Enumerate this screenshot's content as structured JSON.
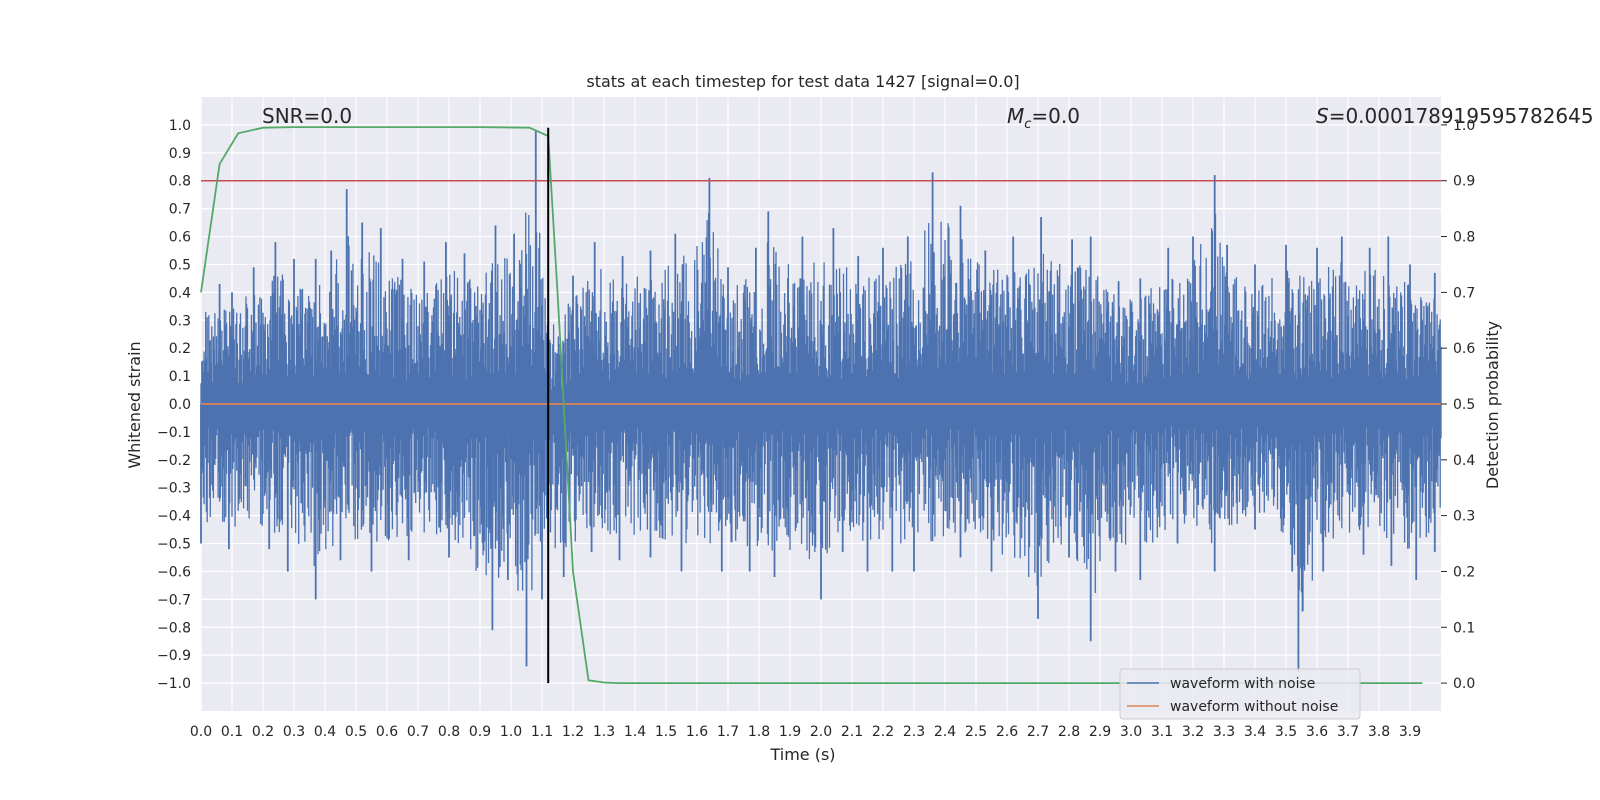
{
  "chart_data": {
    "type": "line",
    "title": "stats at each timestep for test data 1427 [signal=0.0]",
    "xlabel": "Time (s)",
    "ylabel": "Whitened strain",
    "y2label": "Detection probability",
    "xlim": [
      0.0,
      4.0
    ],
    "ylim": [
      -1.1,
      1.1
    ],
    "y2lim": [
      -0.05,
      1.05
    ],
    "x_ticks": [
      "0.0",
      "0.1",
      "0.2",
      "0.3",
      "0.4",
      "0.5",
      "0.6",
      "0.7",
      "0.8",
      "0.9",
      "1.0",
      "1.1",
      "1.2",
      "1.3",
      "1.4",
      "1.5",
      "1.6",
      "1.7",
      "1.8",
      "1.9",
      "2.0",
      "2.1",
      "2.2",
      "2.3",
      "2.4",
      "2.5",
      "2.6",
      "2.7",
      "2.8",
      "2.9",
      "3.0",
      "3.1",
      "3.2",
      "3.3",
      "3.4",
      "3.5",
      "3.6",
      "3.7",
      "3.8",
      "3.9"
    ],
    "y_ticks": [
      "1.0",
      "0.9",
      "0.8",
      "0.7",
      "0.6",
      "0.5",
      "0.4",
      "0.3",
      "0.2",
      "0.1",
      "0.0",
      "−0.1",
      "−0.2",
      "−0.3",
      "−0.4",
      "−0.5",
      "−0.6",
      "−0.7",
      "−0.8",
      "−0.9",
      "−1.0"
    ],
    "y2_ticks": [
      "1.0",
      "0.9",
      "0.8",
      "0.7",
      "0.6",
      "0.5",
      "0.4",
      "0.3",
      "0.2",
      "0.1",
      "0.0"
    ],
    "annotations": {
      "snr": "SNR=0.0",
      "mc_symbol": "M",
      "mc_sub": "c",
      "mc_value": "=0.0",
      "s_symbol": "S",
      "s_value": "=0.00017891959578264",
      "s_tail": "5"
    },
    "legend": {
      "placement": "bottom-right",
      "entries": [
        {
          "label": "waveform with noise",
          "color": "#4c72b0"
        },
        {
          "label": "waveform without noise",
          "color": "#dd8452"
        }
      ]
    },
    "series": [
      {
        "name": "waveform with noise",
        "color": "#4c72b0",
        "note_kind": "dense noise, approx envelope",
        "peaks_high": [
          [
            0.06,
            0.43
          ],
          [
            0.1,
            0.4
          ],
          [
            0.17,
            0.49
          ],
          [
            0.24,
            0.58
          ],
          [
            0.3,
            0.52
          ],
          [
            0.37,
            0.52
          ],
          [
            0.42,
            0.55
          ],
          [
            0.47,
            0.77
          ],
          [
            0.52,
            0.65
          ],
          [
            0.58,
            0.63
          ],
          [
            0.65,
            0.52
          ],
          [
            0.72,
            0.51
          ],
          [
            0.79,
            0.58
          ],
          [
            0.85,
            0.54
          ],
          [
            0.95,
            0.64
          ],
          [
            1.01,
            0.61
          ],
          [
            1.08,
            0.98
          ],
          [
            1.12,
            0.31
          ],
          [
            1.2,
            0.46
          ],
          [
            1.27,
            0.58
          ],
          [
            1.36,
            0.53
          ],
          [
            1.45,
            0.55
          ],
          [
            1.53,
            0.61
          ],
          [
            1.64,
            0.81
          ],
          [
            1.7,
            0.49
          ],
          [
            1.79,
            0.56
          ],
          [
            1.83,
            0.69
          ],
          [
            1.94,
            0.6
          ],
          [
            2.04,
            0.63
          ],
          [
            2.12,
            0.53
          ],
          [
            2.2,
            0.56
          ],
          [
            2.28,
            0.6
          ],
          [
            2.36,
            0.83
          ],
          [
            2.45,
            0.71
          ],
          [
            2.53,
            0.55
          ],
          [
            2.62,
            0.6
          ],
          [
            2.71,
            0.67
          ],
          [
            2.81,
            0.59
          ],
          [
            2.87,
            0.6
          ],
          [
            2.96,
            0.44
          ],
          [
            3.03,
            0.45
          ],
          [
            3.12,
            0.56
          ],
          [
            3.2,
            0.6
          ],
          [
            3.27,
            0.82
          ],
          [
            3.31,
            0.57
          ],
          [
            3.4,
            0.5
          ],
          [
            3.5,
            0.57
          ],
          [
            3.6,
            0.56
          ],
          [
            3.68,
            0.6
          ],
          [
            3.77,
            0.56
          ],
          [
            3.83,
            0.6
          ],
          [
            3.9,
            0.5
          ],
          [
            3.98,
            0.47
          ]
        ],
        "peaks_low": [
          [
            0.0,
            -0.5
          ],
          [
            0.09,
            -0.52
          ],
          [
            0.22,
            -0.52
          ],
          [
            0.28,
            -0.6
          ],
          [
            0.37,
            -0.7
          ],
          [
            0.45,
            -0.56
          ],
          [
            0.55,
            -0.6
          ],
          [
            0.67,
            -0.56
          ],
          [
            0.8,
            -0.55
          ],
          [
            0.94,
            -0.81
          ],
          [
            0.99,
            -0.63
          ],
          [
            1.05,
            -0.94
          ],
          [
            1.1,
            -0.7
          ],
          [
            1.17,
            -0.62
          ],
          [
            1.26,
            -0.53
          ],
          [
            1.35,
            -0.56
          ],
          [
            1.45,
            -0.55
          ],
          [
            1.55,
            -0.6
          ],
          [
            1.68,
            -0.6
          ],
          [
            1.77,
            -0.6
          ],
          [
            1.85,
            -0.62
          ],
          [
            2.0,
            -0.7
          ],
          [
            2.07,
            -0.53
          ],
          [
            2.15,
            -0.6
          ],
          [
            2.23,
            -0.6
          ],
          [
            2.3,
            -0.6
          ],
          [
            2.45,
            -0.55
          ],
          [
            2.55,
            -0.6
          ],
          [
            2.7,
            -0.77
          ],
          [
            2.8,
            -0.55
          ],
          [
            2.87,
            -0.85
          ],
          [
            2.95,
            -0.6
          ],
          [
            3.03,
            -0.63
          ],
          [
            3.15,
            -0.5
          ],
          [
            3.27,
            -0.6
          ],
          [
            3.4,
            -0.45
          ],
          [
            3.52,
            -0.6
          ],
          [
            3.54,
            -0.96
          ],
          [
            3.62,
            -0.6
          ],
          [
            3.75,
            -0.54
          ],
          [
            3.84,
            -0.58
          ],
          [
            3.92,
            -0.63
          ],
          [
            3.98,
            -0.53
          ]
        ]
      },
      {
        "name": "waveform without noise",
        "color": "#dd8452",
        "x": [
          0.0,
          4.0
        ],
        "y": [
          0.0,
          0.0
        ]
      },
      {
        "color": "#55a868",
        "axis": "right",
        "x": [
          0.0,
          0.06,
          0.12,
          0.2,
          0.3,
          0.6,
          0.9,
          1.06,
          1.12,
          1.15,
          1.2,
          1.25,
          1.3,
          1.35,
          1.5,
          2.0,
          3.0,
          3.94
        ],
        "y": [
          0.7,
          0.93,
          0.985,
          0.995,
          0.996,
          0.996,
          0.996,
          0.995,
          0.98,
          0.7,
          0.2,
          0.005,
          0.001,
          0.0,
          0.0,
          0.0,
          0.0,
          0.0
        ]
      }
    ],
    "threshold": {
      "axis": "right",
      "value": 0.9,
      "color": "#c44e52"
    },
    "marker_line": {
      "x": 1.12,
      "y_from": -1.0,
      "y_to": 0.99,
      "color": "#000000"
    },
    "colors": {
      "plot_bg": "#eaeaf2",
      "grid": "#ffffff"
    }
  }
}
